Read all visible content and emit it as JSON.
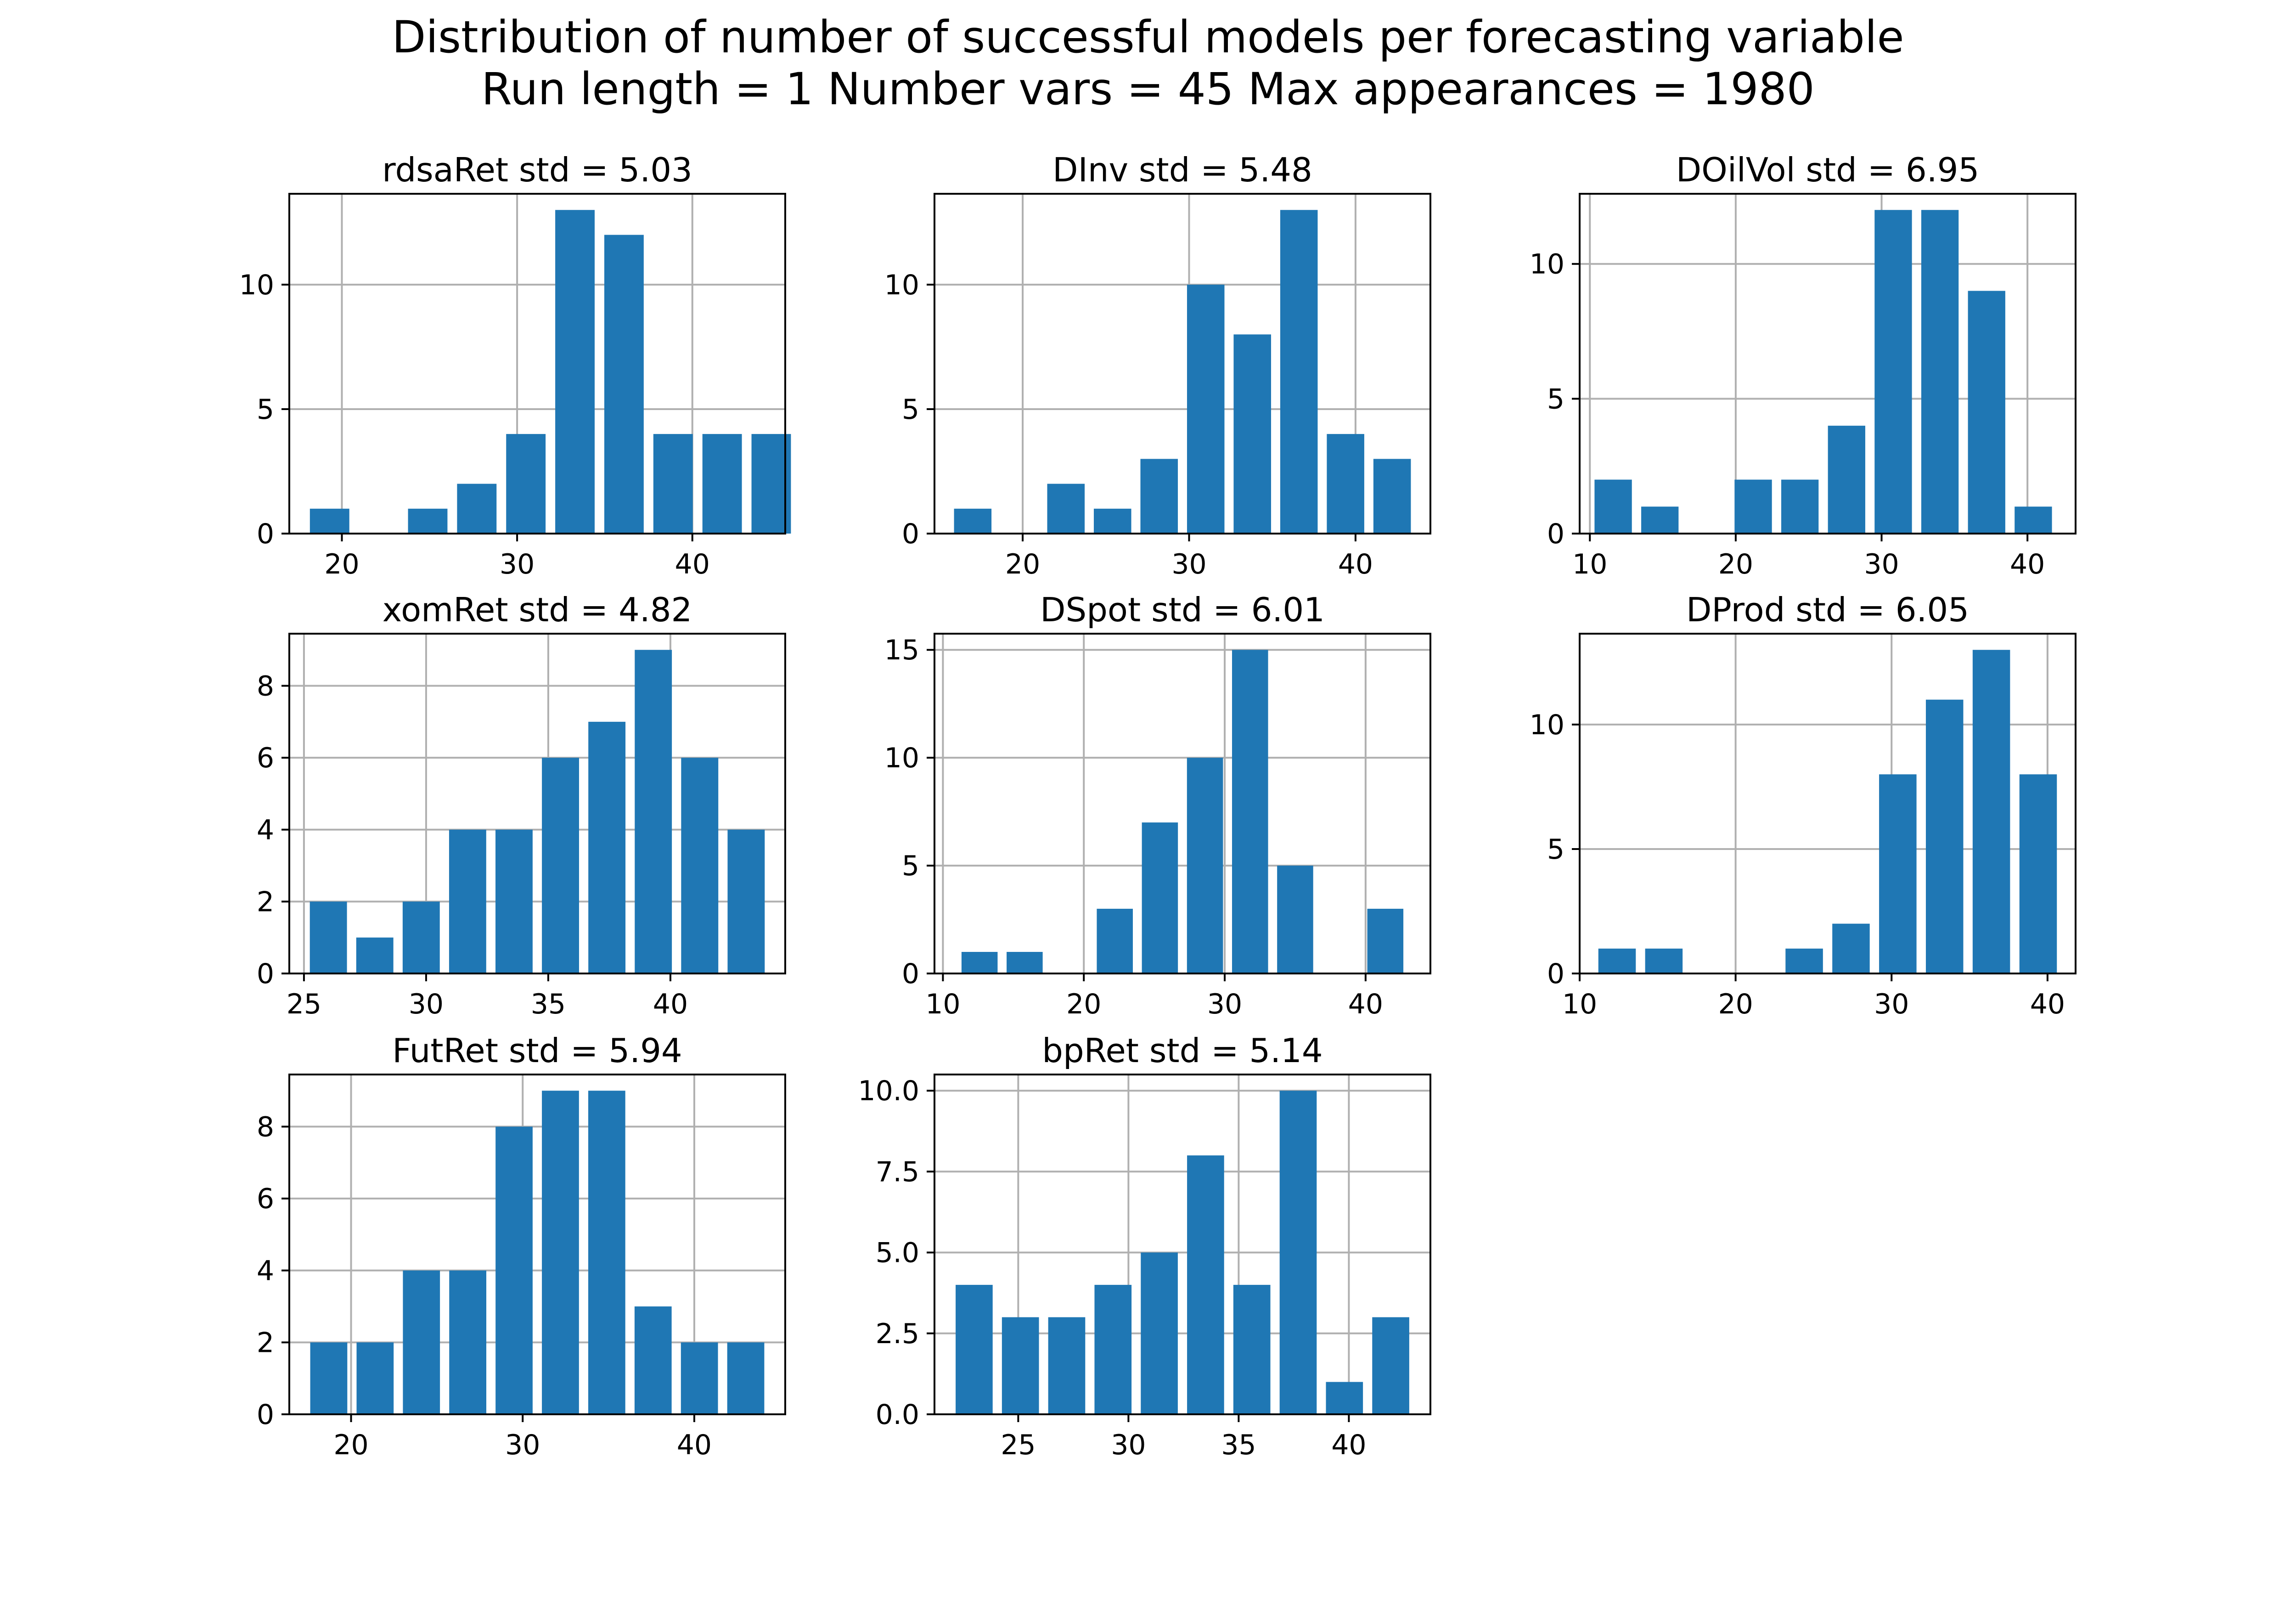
{
  "figure": {
    "title_line1": "Distribution of number of successful models per forecasting variable",
    "title_line2": "Run length = 1  Number vars = 45  Max appearances = 1980"
  },
  "colors": {
    "bar": "#1f77b4",
    "grid": "#b0b0b0",
    "axes": "#000000",
    "background": "#ffffff"
  },
  "chart_data": [
    {
      "type": "bar",
      "title": "rdsaRet std = 5.03",
      "grid": true,
      "x": [
        19.3,
        22.1,
        24.9,
        27.7,
        30.5,
        33.3,
        36.1,
        38.9,
        41.7,
        44.5
      ],
      "values": [
        1,
        0,
        1,
        2,
        4,
        13,
        12,
        4,
        4,
        4
      ],
      "bar_width": 2.25,
      "xlim": [
        17.0,
        45.3
      ],
      "ylim": [
        0,
        13.65
      ],
      "xticks": [
        20,
        30,
        40
      ],
      "xticklabels": [
        "20",
        "30",
        "40"
      ],
      "yticks": [
        0,
        5,
        10
      ],
      "yticklabels": [
        "0",
        "5",
        "10"
      ]
    },
    {
      "type": "bar",
      "title": "DInv std = 5.48",
      "grid": true,
      "x": [
        17.0,
        19.8,
        22.6,
        25.4,
        28.2,
        31.0,
        33.8,
        36.6,
        39.4,
        42.2
      ],
      "values": [
        1,
        0,
        2,
        1,
        3,
        10,
        8,
        13,
        4,
        3
      ],
      "bar_width": 2.25,
      "xlim": [
        14.7,
        44.5
      ],
      "ylim": [
        0,
        13.65
      ],
      "xticks": [
        20,
        30,
        40
      ],
      "xticklabels": [
        "20",
        "30",
        "40"
      ],
      "yticks": [
        0,
        5,
        10
      ],
      "yticklabels": [
        "0",
        "5",
        "10"
      ]
    },
    {
      "type": "bar",
      "title": "DOilVol std = 6.95",
      "grid": true,
      "x": [
        11.6,
        14.8,
        18.0,
        21.2,
        24.4,
        27.6,
        30.8,
        34.0,
        37.2,
        40.4
      ],
      "values": [
        2,
        1,
        0,
        2,
        2,
        4,
        12,
        12,
        9,
        1
      ],
      "bar_width": 2.56,
      "xlim": [
        9.3,
        43.3
      ],
      "ylim": [
        0,
        12.6
      ],
      "xticks": [
        10,
        20,
        30,
        40
      ],
      "xticklabels": [
        "10",
        "20",
        "30",
        "40"
      ],
      "yticks": [
        0,
        5,
        10
      ],
      "yticklabels": [
        "0",
        "5",
        "10"
      ]
    },
    {
      "type": "bar",
      "title": "xomRet std = 4.82",
      "grid": true,
      "x": [
        26.0,
        27.9,
        29.8,
        31.7,
        33.6,
        35.5,
        37.4,
        39.3,
        41.2,
        43.1
      ],
      "values": [
        2,
        1,
        2,
        4,
        4,
        6,
        7,
        9,
        6,
        4
      ],
      "bar_width": 1.52,
      "xlim": [
        24.4,
        44.7
      ],
      "ylim": [
        0,
        9.45
      ],
      "xticks": [
        25,
        30,
        35,
        40
      ],
      "xticklabels": [
        "25",
        "30",
        "35",
        "40"
      ],
      "yticks": [
        0,
        2,
        4,
        6,
        8
      ],
      "yticklabels": [
        "0",
        "2",
        "4",
        "6",
        "8"
      ]
    },
    {
      "type": "bar",
      "title": "DSpot std = 6.01",
      "grid": true,
      "x": [
        12.6,
        15.8,
        19.0,
        22.2,
        25.4,
        28.6,
        31.8,
        35.0,
        38.2,
        41.4
      ],
      "values": [
        1,
        1,
        0,
        3,
        7,
        10,
        15,
        5,
        0,
        3
      ],
      "bar_width": 2.56,
      "xlim": [
        9.4,
        44.6
      ],
      "ylim": [
        0,
        15.75
      ],
      "xticks": [
        10,
        20,
        30,
        40
      ],
      "xticklabels": [
        "10",
        "20",
        "30",
        "40"
      ],
      "yticks": [
        0,
        5,
        10,
        15
      ],
      "yticklabels": [
        "0",
        "5",
        "10",
        "15"
      ]
    },
    {
      "type": "bar",
      "title": "DProd std = 6.05",
      "grid": true,
      "x": [
        12.4,
        15.4,
        18.4,
        21.4,
        24.4,
        27.4,
        30.4,
        33.4,
        36.4,
        39.4
      ],
      "values": [
        1,
        1,
        0,
        0,
        1,
        2,
        8,
        11,
        13,
        8
      ],
      "bar_width": 2.4,
      "xlim": [
        10.0,
        41.8
      ],
      "ylim": [
        0,
        13.65
      ],
      "xticks": [
        10,
        20,
        30,
        40
      ],
      "xticklabels": [
        "10",
        "20",
        "30",
        "40"
      ],
      "yticks": [
        0,
        5,
        10
      ],
      "yticklabels": [
        "0",
        "5",
        "10"
      ]
    },
    {
      "type": "bar",
      "title": "FutRet std = 5.94",
      "grid": true,
      "x": [
        18.7,
        21.4,
        24.1,
        26.8,
        29.5,
        32.2,
        34.9,
        37.6,
        40.3,
        43.0
      ],
      "values": [
        2,
        2,
        4,
        4,
        8,
        9,
        9,
        3,
        2,
        2
      ],
      "bar_width": 2.16,
      "xlim": [
        16.4,
        45.3
      ],
      "ylim": [
        0,
        9.45
      ],
      "xticks": [
        20,
        30,
        40
      ],
      "xticklabels": [
        "20",
        "30",
        "40"
      ],
      "yticks": [
        0,
        2,
        4,
        6,
        8
      ],
      "yticklabels": [
        "0",
        "2",
        "4",
        "6",
        "8"
      ]
    },
    {
      "type": "bar",
      "title": "bpRet std = 5.14",
      "grid": true,
      "x": [
        23.0,
        25.1,
        27.2,
        29.3,
        31.4,
        33.5,
        35.6,
        37.7,
        39.8,
        41.9
      ],
      "values": [
        4,
        3,
        3,
        4,
        5,
        8,
        4,
        10,
        1,
        3
      ],
      "bar_width": 1.68,
      "xlim": [
        21.2,
        43.7
      ],
      "ylim": [
        0,
        10.5
      ],
      "xticks": [
        25,
        30,
        35,
        40
      ],
      "xticklabels": [
        "25",
        "30",
        "35",
        "40"
      ],
      "yticks": [
        0,
        2.5,
        5,
        7.5,
        10
      ],
      "yticklabels": [
        "0.0",
        "2.5",
        "5.0",
        "7.5",
        "10.0"
      ]
    }
  ]
}
